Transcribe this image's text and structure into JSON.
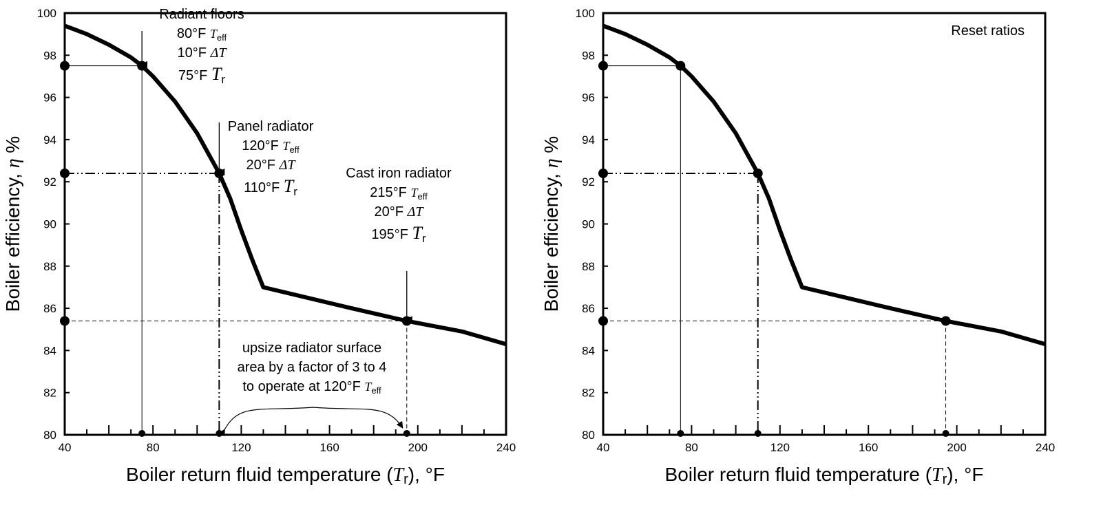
{
  "chart_data": [
    {
      "type": "line",
      "xlabel": "Boiler return fluid temperature (Tr), °F",
      "ylabel": "Boiler efficiency, η %",
      "xlim": [
        40,
        240
      ],
      "ylim": [
        80,
        100
      ],
      "x_ticks": [
        "40",
        "80",
        "120",
        "160",
        "200",
        "240"
      ],
      "y_ticks": [
        "80",
        "82",
        "84",
        "86",
        "88",
        "90",
        "92",
        "94",
        "96",
        "98",
        "100"
      ],
      "series": [
        {
          "x": [
            40,
            50,
            60,
            70,
            75,
            80,
            90,
            100,
            110,
            115,
            120,
            125,
            130,
            150,
            170,
            195,
            220,
            240
          ],
          "y": [
            99.4,
            99.0,
            98.5,
            97.9,
            97.5,
            97.0,
            95.8,
            94.3,
            92.4,
            91.2,
            89.7,
            88.3,
            87.0,
            86.5,
            86.0,
            85.4,
            84.9,
            84.3
          ]
        }
      ],
      "points": [
        {
          "x": 75,
          "y": 97.5
        },
        {
          "x": 110,
          "y": 92.4
        },
        {
          "x": 195,
          "y": 85.4
        }
      ],
      "annotations": {
        "radiant": {
          "title": "Radiant floors",
          "teff": "80°F",
          "teff_sym": "Teff",
          "dt": "10°F",
          "dt_sym": "ΔT",
          "tr": "75°F",
          "tr_sym": "Tr"
        },
        "panel": {
          "title": "Panel radiator",
          "teff": "120°F",
          "teff_sym": "Teff",
          "dt": "20°F",
          "dt_sym": "ΔT",
          "tr": "110°F",
          "tr_sym": "Tr"
        },
        "castiron": {
          "title": "Cast iron radiator",
          "teff": "215°F",
          "teff_sym": "Teff",
          "dt": "20°F",
          "dt_sym": "ΔT",
          "tr": "195°F",
          "tr_sym": "Tr"
        },
        "upsize": [
          "upsize radiator surface",
          "area by a factor of 3 to 4",
          "to operate at 120°F Teff"
        ]
      }
    },
    {
      "type": "line",
      "xlabel": "Boiler return fluid temperature (Tr), °F",
      "ylabel": "Boiler efficiency, η %",
      "xlim": [
        40,
        240
      ],
      "ylim": [
        80,
        100
      ],
      "x_ticks": [
        "40",
        "80",
        "120",
        "160",
        "200",
        "240"
      ],
      "y_ticks": [
        "80",
        "82",
        "84",
        "86",
        "88",
        "90",
        "92",
        "94",
        "96",
        "98",
        "100"
      ],
      "series": [
        {
          "x": [
            40,
            50,
            60,
            70,
            75,
            80,
            90,
            100,
            110,
            115,
            120,
            125,
            130,
            150,
            170,
            195,
            220,
            240
          ],
          "y": [
            99.4,
            99.0,
            98.5,
            97.9,
            97.5,
            97.0,
            95.8,
            94.3,
            92.4,
            91.2,
            89.7,
            88.3,
            87.0,
            86.5,
            86.0,
            85.4,
            84.9,
            84.3
          ]
        }
      ],
      "points": [
        {
          "x": 75,
          "y": 97.5
        },
        {
          "x": 110,
          "y": 92.4
        },
        {
          "x": 195,
          "y": 85.4
        }
      ],
      "annotations": {
        "corner": "Reset ratios"
      }
    }
  ]
}
